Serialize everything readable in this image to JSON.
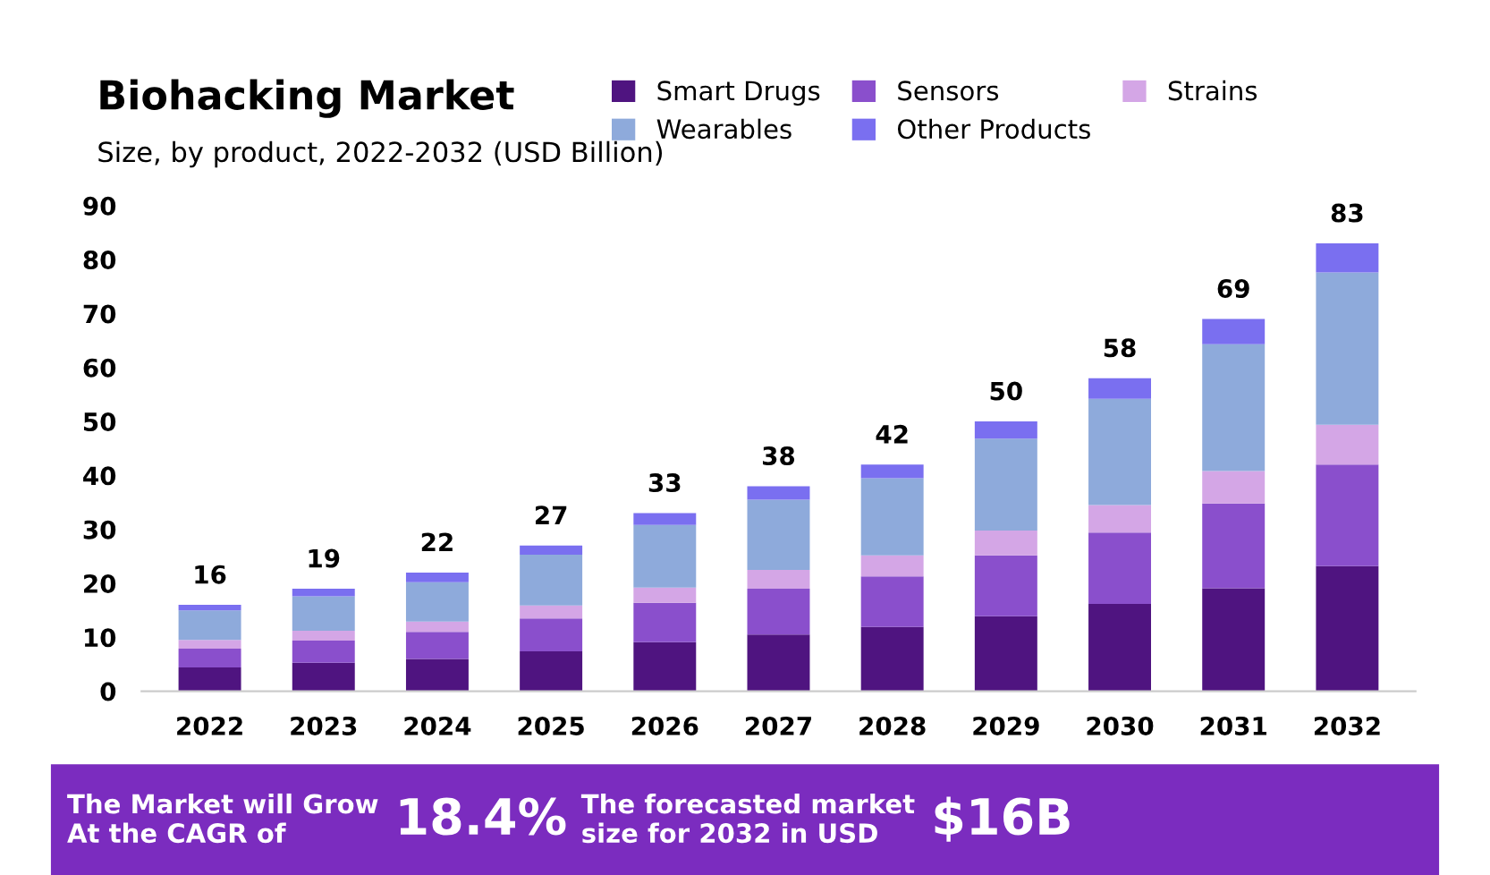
{
  "chart_data": {
    "type": "bar",
    "title": "Biohacking Market",
    "subtitle": "Size, by product, 2022-2032 (USD Billion)",
    "categories": [
      "2022",
      "2023",
      "2024",
      "2025",
      "2026",
      "2027",
      "2028",
      "2029",
      "2030",
      "2031",
      "2032"
    ],
    "stacked": true,
    "series": [
      {
        "name": "Smart Drugs",
        "color": "#4f1480",
        "values": [
          4.4,
          5.3,
          6.0,
          7.4,
          9.1,
          10.5,
          11.9,
          13.9,
          16.2,
          19.1,
          23.2
        ]
      },
      {
        "name": "Sensors",
        "color": "#8a4fcc",
        "values": [
          3.5,
          4.1,
          5.0,
          6.1,
          7.3,
          8.5,
          9.4,
          11.3,
          13.2,
          15.7,
          18.8
        ]
      },
      {
        "name": "Strains",
        "color": "#d4a6e6",
        "values": [
          1.6,
          1.8,
          1.9,
          2.4,
          2.8,
          3.5,
          3.9,
          4.6,
          5.1,
          6.0,
          7.4
        ]
      },
      {
        "name": "Wearables",
        "color": "#8eaadb",
        "values": [
          5.5,
          6.4,
          7.3,
          9.4,
          11.6,
          13.0,
          14.3,
          17.0,
          19.7,
          23.5,
          28.2
        ]
      },
      {
        "name": "Other Products",
        "color": "#7a6ff0",
        "values": [
          1.0,
          1.4,
          1.8,
          1.7,
          2.2,
          2.5,
          2.5,
          3.2,
          3.8,
          4.7,
          5.4
        ]
      }
    ],
    "totals": [
      "16",
      "19",
      "22",
      "27",
      "33",
      "38",
      "42",
      "50",
      "58",
      "69",
      "83"
    ],
    "ylim": [
      0,
      90
    ],
    "yticks": [
      0,
      10,
      20,
      30,
      40,
      50,
      60,
      70,
      80,
      90
    ],
    "grid": false,
    "legend": "top right",
    "annotations": [
      "The Market will Grow\nAt the CAGR of",
      "18.4%",
      "The forecasted market\nsize for 2032 in USD",
      "$16B"
    ]
  }
}
